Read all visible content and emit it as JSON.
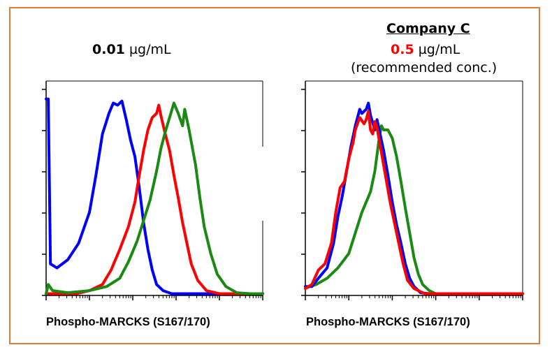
{
  "colors": {
    "frame": "#e07b39",
    "highlight": "#ff0000",
    "blue": "#0000ff",
    "red": "#ff0000",
    "green": "#1a8a12"
  },
  "left_panel": {
    "conc_value": "0.01",
    "conc_unit": "µg/mL"
  },
  "right_panel": {
    "company": "Company C",
    "conc_value": "0.5",
    "conc_unit": "µg/mL",
    "note": "(recommended conc.)"
  },
  "chart_data": [
    {
      "type": "line",
      "xlabel": "Phospho-MARCKS (S167/170)",
      "ylabel": "",
      "xscale": "log",
      "xlim": [
        0,
        1
      ],
      "ylim": [
        0,
        1
      ],
      "grid": false,
      "series": [
        {
          "color": "blue",
          "points": [
            [
              0.0,
              0.95
            ],
            [
              0.01,
              0.95
            ],
            [
              0.02,
              0.15
            ],
            [
              0.05,
              0.13
            ],
            [
              0.1,
              0.17
            ],
            [
              0.15,
              0.25
            ],
            [
              0.2,
              0.4
            ],
            [
              0.23,
              0.58
            ],
            [
              0.26,
              0.78
            ],
            [
              0.29,
              0.88
            ],
            [
              0.31,
              0.93
            ],
            [
              0.33,
              0.92
            ],
            [
              0.35,
              0.94
            ],
            [
              0.37,
              0.85
            ],
            [
              0.39,
              0.75
            ],
            [
              0.41,
              0.67
            ],
            [
              0.43,
              0.52
            ],
            [
              0.45,
              0.35
            ],
            [
              0.47,
              0.22
            ],
            [
              0.49,
              0.12
            ],
            [
              0.51,
              0.05
            ],
            [
              0.54,
              0.02
            ],
            [
              0.58,
              0.005
            ],
            [
              1.0,
              0.005
            ]
          ]
        },
        {
          "color": "red",
          "points": [
            [
              0.0,
              0.005
            ],
            [
              0.14,
              0.005
            ],
            [
              0.2,
              0.02
            ],
            [
              0.26,
              0.05
            ],
            [
              0.3,
              0.12
            ],
            [
              0.34,
              0.22
            ],
            [
              0.38,
              0.33
            ],
            [
              0.41,
              0.45
            ],
            [
              0.43,
              0.58
            ],
            [
              0.45,
              0.7
            ],
            [
              0.47,
              0.8
            ],
            [
              0.49,
              0.86
            ],
            [
              0.51,
              0.88
            ],
            [
              0.52,
              0.92
            ],
            [
              0.53,
              0.87
            ],
            [
              0.55,
              0.78
            ],
            [
              0.57,
              0.7
            ],
            [
              0.59,
              0.58
            ],
            [
              0.61,
              0.47
            ],
            [
              0.63,
              0.35
            ],
            [
              0.65,
              0.25
            ],
            [
              0.67,
              0.15
            ],
            [
              0.7,
              0.07
            ],
            [
              0.74,
              0.02
            ],
            [
              0.8,
              0.005
            ],
            [
              1.0,
              0.005
            ]
          ]
        },
        {
          "color": "green",
          "points": [
            [
              0.0,
              0.005
            ],
            [
              0.01,
              0.05
            ],
            [
              0.03,
              0.02
            ],
            [
              0.1,
              0.01
            ],
            [
              0.2,
              0.02
            ],
            [
              0.28,
              0.04
            ],
            [
              0.34,
              0.08
            ],
            [
              0.38,
              0.16
            ],
            [
              0.42,
              0.26
            ],
            [
              0.45,
              0.36
            ],
            [
              0.48,
              0.46
            ],
            [
              0.51,
              0.6
            ],
            [
              0.53,
              0.71
            ],
            [
              0.55,
              0.79
            ],
            [
              0.57,
              0.86
            ],
            [
              0.59,
              0.93
            ],
            [
              0.61,
              0.88
            ],
            [
              0.63,
              0.82
            ],
            [
              0.64,
              0.9
            ],
            [
              0.66,
              0.8
            ],
            [
              0.69,
              0.63
            ],
            [
              0.71,
              0.47
            ],
            [
              0.73,
              0.33
            ],
            [
              0.76,
              0.2
            ],
            [
              0.79,
              0.1
            ],
            [
              0.83,
              0.04
            ],
            [
              0.88,
              0.01
            ],
            [
              0.94,
              0.005
            ],
            [
              1.0,
              0.005
            ]
          ]
        }
      ]
    },
    {
      "type": "line",
      "xlabel": "Phospho-MARCKS (S167/170)",
      "ylabel": "",
      "xscale": "log",
      "xlim": [
        0,
        1
      ],
      "ylim": [
        0,
        1
      ],
      "grid": false,
      "series": [
        {
          "color": "green",
          "points": [
            [
              0.0,
              0.03
            ],
            [
              0.02,
              0.04
            ],
            [
              0.05,
              0.05
            ],
            [
              0.1,
              0.08
            ],
            [
              0.15,
              0.13
            ],
            [
              0.2,
              0.2
            ],
            [
              0.23,
              0.3
            ],
            [
              0.26,
              0.4
            ],
            [
              0.28,
              0.45
            ],
            [
              0.3,
              0.5
            ],
            [
              0.32,
              0.6
            ],
            [
              0.33,
              0.68
            ],
            [
              0.34,
              0.76
            ],
            [
              0.35,
              0.82
            ],
            [
              0.36,
              0.8
            ],
            [
              0.38,
              0.8
            ],
            [
              0.4,
              0.76
            ],
            [
              0.42,
              0.67
            ],
            [
              0.44,
              0.55
            ],
            [
              0.46,
              0.42
            ],
            [
              0.48,
              0.3
            ],
            [
              0.5,
              0.18
            ],
            [
              0.52,
              0.1
            ],
            [
              0.54,
              0.05
            ],
            [
              0.57,
              0.02
            ],
            [
              0.6,
              0.005
            ],
            [
              1.0,
              0.005
            ]
          ]
        },
        {
          "color": "blue",
          "points": [
            [
              0.0,
              0.04
            ],
            [
              0.03,
              0.04
            ],
            [
              0.06,
              0.08
            ],
            [
              0.1,
              0.13
            ],
            [
              0.13,
              0.25
            ],
            [
              0.15,
              0.38
            ],
            [
              0.17,
              0.48
            ],
            [
              0.19,
              0.6
            ],
            [
              0.21,
              0.72
            ],
            [
              0.23,
              0.82
            ],
            [
              0.25,
              0.9
            ],
            [
              0.26,
              0.88
            ],
            [
              0.28,
              0.9
            ],
            [
              0.29,
              0.93
            ],
            [
              0.3,
              0.87
            ],
            [
              0.32,
              0.8
            ],
            [
              0.33,
              0.85
            ],
            [
              0.34,
              0.8
            ],
            [
              0.36,
              0.7
            ],
            [
              0.38,
              0.58
            ],
            [
              0.4,
              0.45
            ],
            [
              0.42,
              0.34
            ],
            [
              0.44,
              0.25
            ],
            [
              0.46,
              0.15
            ],
            [
              0.48,
              0.08
            ],
            [
              0.5,
              0.04
            ],
            [
              0.53,
              0.01
            ],
            [
              0.57,
              0.005
            ],
            [
              1.0,
              0.005
            ]
          ]
        },
        {
          "color": "red",
          "points": [
            [
              0.0,
              0.03
            ],
            [
              0.03,
              0.05
            ],
            [
              0.06,
              0.12
            ],
            [
              0.09,
              0.15
            ],
            [
              0.12,
              0.25
            ],
            [
              0.14,
              0.4
            ],
            [
              0.16,
              0.52
            ],
            [
              0.18,
              0.55
            ],
            [
              0.2,
              0.66
            ],
            [
              0.22,
              0.74
            ],
            [
              0.23,
              0.8
            ],
            [
              0.25,
              0.86
            ],
            [
              0.27,
              0.83
            ],
            [
              0.28,
              0.85
            ],
            [
              0.29,
              0.89
            ],
            [
              0.3,
              0.8
            ],
            [
              0.31,
              0.78
            ],
            [
              0.32,
              0.84
            ],
            [
              0.33,
              0.81
            ],
            [
              0.35,
              0.69
            ],
            [
              0.37,
              0.57
            ],
            [
              0.39,
              0.45
            ],
            [
              0.41,
              0.35
            ],
            [
              0.43,
              0.25
            ],
            [
              0.45,
              0.15
            ],
            [
              0.47,
              0.07
            ],
            [
              0.5,
              0.03
            ],
            [
              0.55,
              0.005
            ],
            [
              1.0,
              0.005
            ]
          ]
        }
      ]
    }
  ]
}
